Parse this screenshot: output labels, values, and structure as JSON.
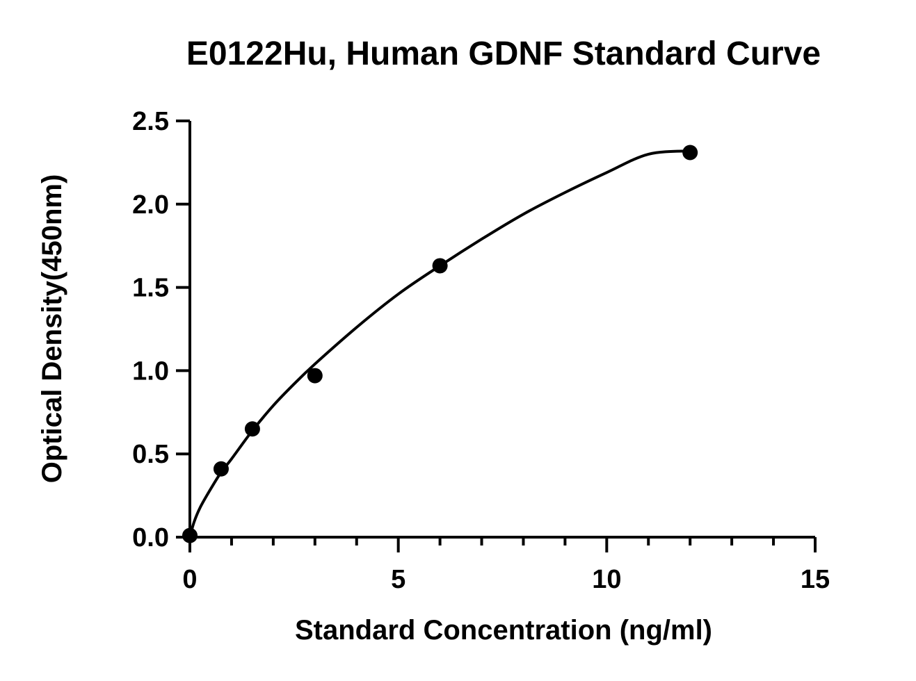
{
  "chart_data": {
    "type": "scatter",
    "title": "E0122Hu, Human GDNF Standard Curve",
    "xlabel": "Standard Concentration (ng/ml)",
    "ylabel": "Optical Density(450nm)",
    "xlim": [
      0,
      15
    ],
    "ylim": [
      0,
      2.5
    ],
    "x_ticks": [
      0,
      5,
      10,
      15
    ],
    "x_tick_labels": [
      "0",
      "5",
      "10",
      "15"
    ],
    "x_minor_step": 1,
    "y_ticks": [
      0,
      0.5,
      1.0,
      1.5,
      2.0,
      2.5
    ],
    "y_tick_labels": [
      "0.0",
      "0.5",
      "1.0",
      "1.5",
      "2.0",
      "2.5"
    ],
    "grid": false,
    "legend": "none",
    "series": [
      {
        "x": [
          0,
          0.75,
          1.5,
          3,
          6,
          12
        ],
        "y": [
          0.01,
          0.41,
          0.65,
          0.97,
          1.63,
          2.31
        ]
      }
    ],
    "curve": {
      "x": [
        0,
        0.1,
        0.25,
        0.5,
        0.75,
        1,
        1.5,
        2,
        2.5,
        3,
        4,
        5,
        6,
        7,
        8,
        9,
        10,
        11,
        12
      ],
      "y": [
        0.0,
        0.09,
        0.18,
        0.29,
        0.39,
        0.47,
        0.64,
        0.79,
        0.92,
        1.04,
        1.26,
        1.46,
        1.63,
        1.79,
        1.94,
        2.07,
        2.19,
        2.3,
        2.32
      ]
    },
    "colors": {
      "marker": "#000000",
      "axis": "#000000",
      "line": "#000000",
      "background": "#ffffff"
    }
  }
}
